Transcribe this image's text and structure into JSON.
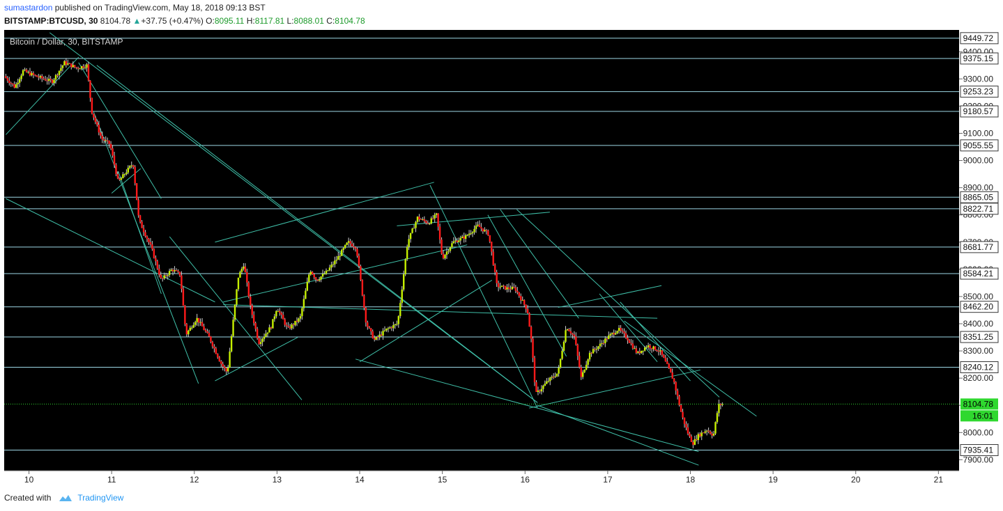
{
  "header": {
    "author": "sumastardon",
    "published": "published on TradingView.com, May 18, 2018 09:13 BST",
    "symbol": "BITSTAMP:BTCUSD, 30",
    "last": "8104.78",
    "change": "+37.75 (+0.47%)",
    "o_label": "O:",
    "o_value": "8095.11",
    "h_label": "H:",
    "h_value": "8117.81",
    "l_label": "L:",
    "l_value": "8088.01",
    "c_label": "C:",
    "c_value": "8104.78"
  },
  "footer": {
    "created_with": "Created with",
    "brand": "TradingView"
  },
  "colors": {
    "background": "#000000",
    "up_candle": "#c6f000",
    "down_candle": "#ff1a1a",
    "wick": "#d0d0d0",
    "trendline": "#3fbfa8",
    "hline": "#9ed8e6",
    "price_line": "#2fd82f"
  },
  "chart_data": {
    "type": "candlestick",
    "title": "Bitcoin / Dollar, 30, BITSTAMP",
    "x_ticks": [
      "10",
      "11",
      "12",
      "13",
      "14",
      "15",
      "16",
      "17",
      "18",
      "19",
      "20",
      "21"
    ],
    "x_range": [
      9.7,
      21.25
    ],
    "y_range": [
      7860,
      9480
    ],
    "y_ticks": [
      7900,
      8000,
      8100,
      8200,
      8300,
      8400,
      8500,
      8600,
      8700,
      8800,
      8900,
      9000,
      9100,
      9200,
      9300,
      9400
    ],
    "horizontal_levels": [
      9449.72,
      9375.15,
      9253.23,
      9180.57,
      9055.55,
      8865.05,
      8822.71,
      8681.77,
      8584.21,
      8462.2,
      8351.25,
      8240.12,
      7935.41
    ],
    "last_price": 8104.78,
    "countdown": "16:01",
    "price_path": [
      [
        9.72,
        9310
      ],
      [
        9.85,
        9270
      ],
      [
        9.95,
        9330
      ],
      [
        10.1,
        9310
      ],
      [
        10.3,
        9290
      ],
      [
        10.45,
        9360
      ],
      [
        10.6,
        9340
      ],
      [
        10.72,
        9350
      ],
      [
        10.78,
        9180
      ],
      [
        10.9,
        9080
      ],
      [
        11.0,
        9060
      ],
      [
        11.1,
        8920
      ],
      [
        11.2,
        8960
      ],
      [
        11.28,
        8990
      ],
      [
        11.35,
        8780
      ],
      [
        11.5,
        8680
      ],
      [
        11.62,
        8560
      ],
      [
        11.75,
        8600
      ],
      [
        11.85,
        8580
      ],
      [
        11.92,
        8360
      ],
      [
        12.05,
        8420
      ],
      [
        12.2,
        8350
      ],
      [
        12.35,
        8250
      ],
      [
        12.42,
        8220
      ],
      [
        12.55,
        8570
      ],
      [
        12.62,
        8620
      ],
      [
        12.7,
        8460
      ],
      [
        12.8,
        8330
      ],
      [
        12.95,
        8390
      ],
      [
        13.02,
        8460
      ],
      [
        13.15,
        8380
      ],
      [
        13.3,
        8420
      ],
      [
        13.42,
        8600
      ],
      [
        13.5,
        8560
      ],
      [
        13.62,
        8590
      ],
      [
        13.75,
        8640
      ],
      [
        13.88,
        8700
      ],
      [
        13.98,
        8680
      ],
      [
        14.1,
        8400
      ],
      [
        14.2,
        8340
      ],
      [
        14.35,
        8380
      ],
      [
        14.48,
        8400
      ],
      [
        14.6,
        8700
      ],
      [
        14.72,
        8790
      ],
      [
        14.85,
        8770
      ],
      [
        14.95,
        8800
      ],
      [
        15.02,
        8640
      ],
      [
        15.15,
        8700
      ],
      [
        15.3,
        8720
      ],
      [
        15.45,
        8760
      ],
      [
        15.58,
        8730
      ],
      [
        15.68,
        8540
      ],
      [
        15.8,
        8530
      ],
      [
        15.9,
        8530
      ],
      [
        16.05,
        8450
      ],
      [
        16.1,
        8330
      ],
      [
        16.15,
        8140
      ],
      [
        16.3,
        8190
      ],
      [
        16.42,
        8220
      ],
      [
        16.52,
        8390
      ],
      [
        16.62,
        8350
      ],
      [
        16.7,
        8200
      ],
      [
        16.8,
        8290
      ],
      [
        16.92,
        8320
      ],
      [
        17.02,
        8350
      ],
      [
        17.15,
        8380
      ],
      [
        17.25,
        8350
      ],
      [
        17.38,
        8290
      ],
      [
        17.5,
        8320
      ],
      [
        17.65,
        8300
      ],
      [
        17.75,
        8240
      ],
      [
        17.82,
        8190
      ],
      [
        17.92,
        8060
      ],
      [
        18.0,
        7990
      ],
      [
        18.05,
        7960
      ],
      [
        18.12,
        7990
      ],
      [
        18.22,
        8010
      ],
      [
        18.3,
        7990
      ],
      [
        18.36,
        8100
      ],
      [
        18.4,
        8104.78
      ]
    ],
    "trendlines": [
      [
        [
          9.72,
          9095
        ],
        [
          10.6,
          9380
        ]
      ],
      [
        [
          9.72,
          8860
        ],
        [
          12.25,
          8480
        ]
      ],
      [
        [
          10.25,
          9470
        ],
        [
          16.15,
          8110
        ]
      ],
      [
        [
          11.7,
          8720
        ],
        [
          13.3,
          8120
        ]
      ],
      [
        [
          10.6,
          9360
        ],
        [
          11.6,
          8860
        ]
      ],
      [
        [
          10.82,
          9350
        ],
        [
          16.15,
          8110
        ]
      ],
      [
        [
          10.78,
          9180
        ],
        [
          12.05,
          8180
        ]
      ],
      [
        [
          11.08,
          8960
        ],
        [
          11.6,
          8510
        ]
      ],
      [
        [
          11.0,
          8880
        ],
        [
          11.35,
          8970
        ]
      ],
      [
        [
          12.25,
          8190
        ],
        [
          13.25,
          8350
        ]
      ],
      [
        [
          12.35,
          8480
        ],
        [
          15.3,
          8690
        ]
      ],
      [
        [
          12.25,
          8700
        ],
        [
          14.9,
          8920
        ]
      ],
      [
        [
          12.35,
          8470
        ],
        [
          17.6,
          8420
        ]
      ],
      [
        [
          13.95,
          8270
        ],
        [
          18.1,
          7930
        ]
      ],
      [
        [
          14.0,
          8260
        ],
        [
          15.6,
          8560
        ]
      ],
      [
        [
          14.85,
          8910
        ],
        [
          16.15,
          8090
        ]
      ],
      [
        [
          14.45,
          8760
        ],
        [
          16.3,
          8810
        ]
      ],
      [
        [
          15.55,
          8800
        ],
        [
          16.5,
          8280
        ]
      ],
      [
        [
          15.7,
          8820
        ],
        [
          16.65,
          8420
        ]
      ],
      [
        [
          15.9,
          8820
        ],
        [
          18.35,
          8130
        ]
      ],
      [
        [
          16.15,
          8100
        ],
        [
          18.1,
          7880
        ]
      ],
      [
        [
          16.05,
          8090
        ],
        [
          18.12,
          8230
        ]
      ],
      [
        [
          16.9,
          8510
        ],
        [
          17.6,
          8260
        ]
      ],
      [
        [
          17.15,
          8480
        ],
        [
          18.0,
          8190
        ]
      ],
      [
        [
          16.4,
          8460
        ],
        [
          17.65,
          8540
        ]
      ],
      [
        [
          17.2,
          8410
        ],
        [
          18.8,
          8060
        ]
      ]
    ]
  }
}
